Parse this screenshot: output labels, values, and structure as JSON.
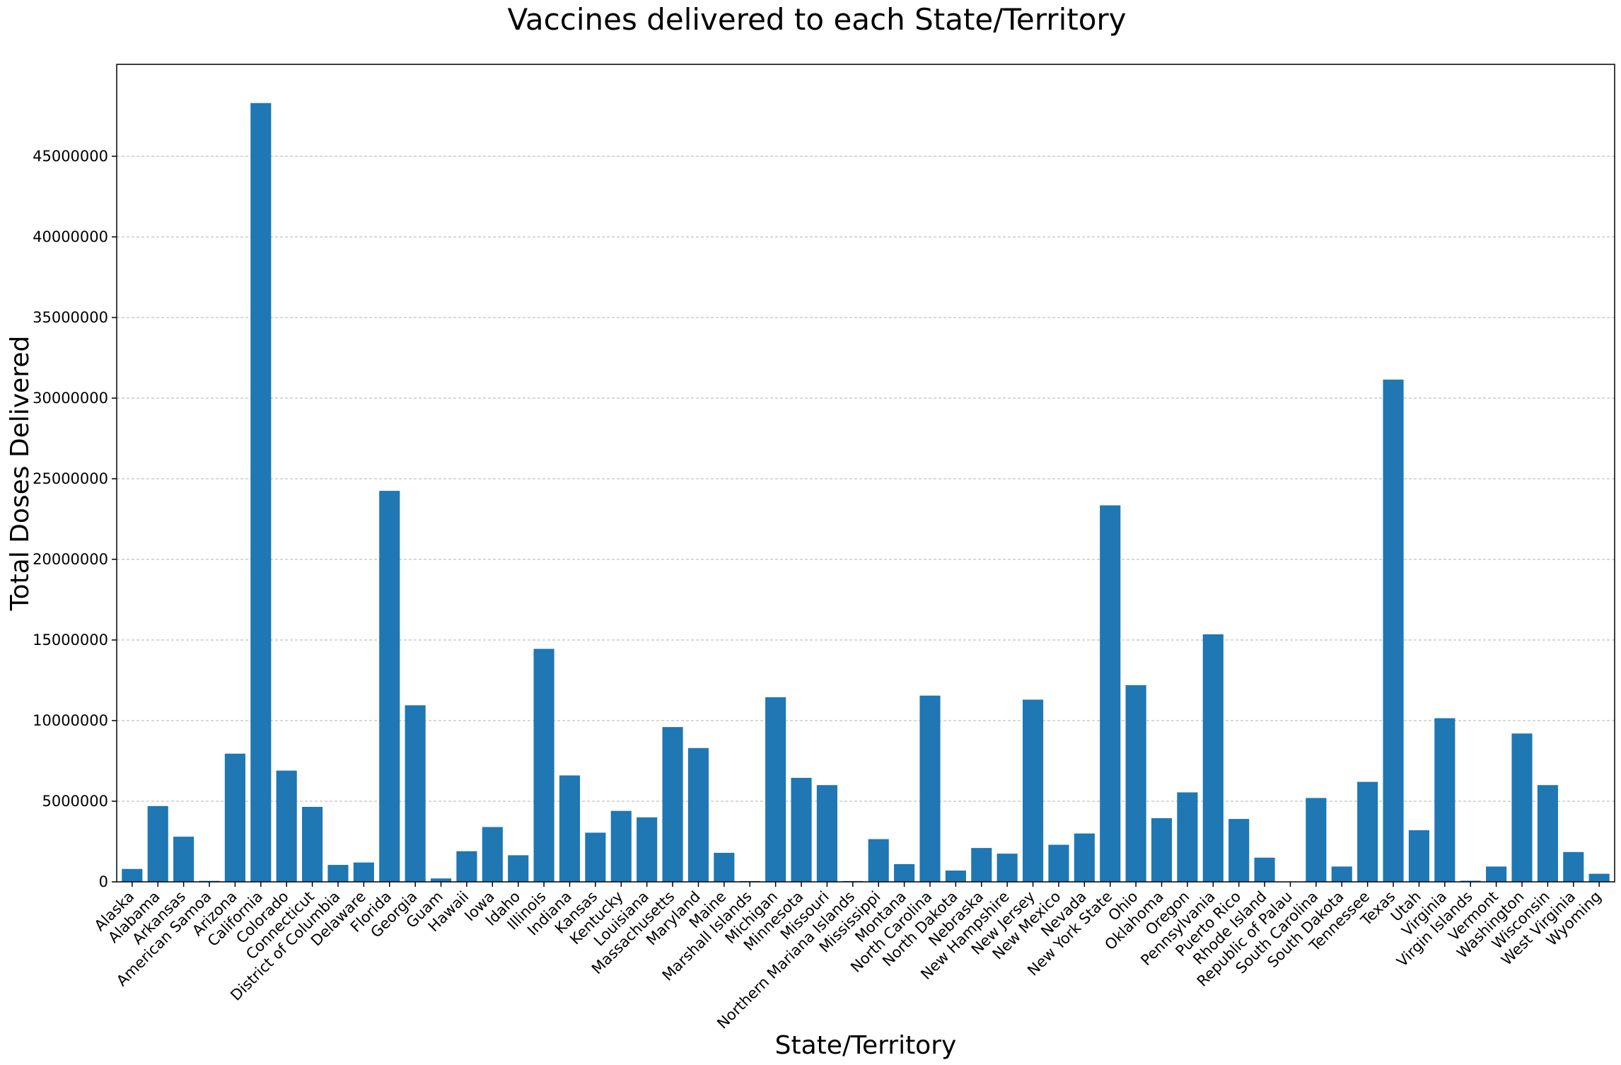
{
  "chart_data": {
    "type": "bar",
    "title": "Vaccines delivered to each State/Territory",
    "xlabel": "State/Territory",
    "ylabel": "Total Doses Delivered",
    "ylim": [
      0,
      50700000
    ],
    "yticks": [
      0,
      5000000,
      10000000,
      15000000,
      20000000,
      25000000,
      30000000,
      35000000,
      40000000,
      45000000
    ],
    "ytick_labels": [
      "0",
      "5000000",
      "10000000",
      "15000000",
      "20000000",
      "25000000",
      "30000000",
      "35000000",
      "40000000",
      "45000000"
    ],
    "grid": "y",
    "bar_color": "#1f77b4",
    "categories": [
      "Alaska",
      "Alabama",
      "Arkansas",
      "American Samoa",
      "Arizona",
      "California",
      "Colorado",
      "Connecticut",
      "District of Columbia",
      "Delaware",
      "Florida",
      "Georgia",
      "Guam",
      "Hawaii",
      "Iowa",
      "Idaho",
      "Illinois",
      "Indiana",
      "Kansas",
      "Kentucky",
      "Louisiana",
      "Massachusetts",
      "Maryland",
      "Maine",
      "Marshall Islands",
      "Michigan",
      "Minnesota",
      "Missouri",
      "Northern Mariana Islands",
      "Mississippi",
      "Montana",
      "North Carolina",
      "North Dakota",
      "Nebraska",
      "New Hampshire",
      "New Jersey",
      "New Mexico",
      "Nevada",
      "New York State",
      "Ohio",
      "Oklahoma",
      "Oregon",
      "Pennsylvania",
      "Puerto Rico",
      "Rhode Island",
      "Republic of Palau",
      "South Carolina",
      "South Dakota",
      "Tennessee",
      "Texas",
      "Utah",
      "Virginia",
      "Virgin Islands",
      "Vermont",
      "Washington",
      "Wisconsin",
      "West Virginia",
      "Wyoming"
    ],
    "values": [
      800000,
      4700000,
      2800000,
      60000,
      7950000,
      48300000,
      6900000,
      4650000,
      1050000,
      1200000,
      24250000,
      10950000,
      210000,
      1900000,
      3400000,
      1650000,
      14450000,
      6600000,
      3050000,
      4400000,
      4000000,
      9600000,
      8300000,
      1800000,
      50000,
      11450000,
      6450000,
      6000000,
      50000,
      2650000,
      1100000,
      11550000,
      700000,
      2100000,
      1750000,
      11300000,
      2300000,
      3000000,
      23350000,
      12200000,
      3950000,
      5550000,
      15350000,
      3900000,
      1500000,
      20000,
      5200000,
      950000,
      6200000,
      31150000,
      3200000,
      10150000,
      70000,
      950000,
      9200000,
      6000000,
      1850000,
      500000
    ]
  }
}
